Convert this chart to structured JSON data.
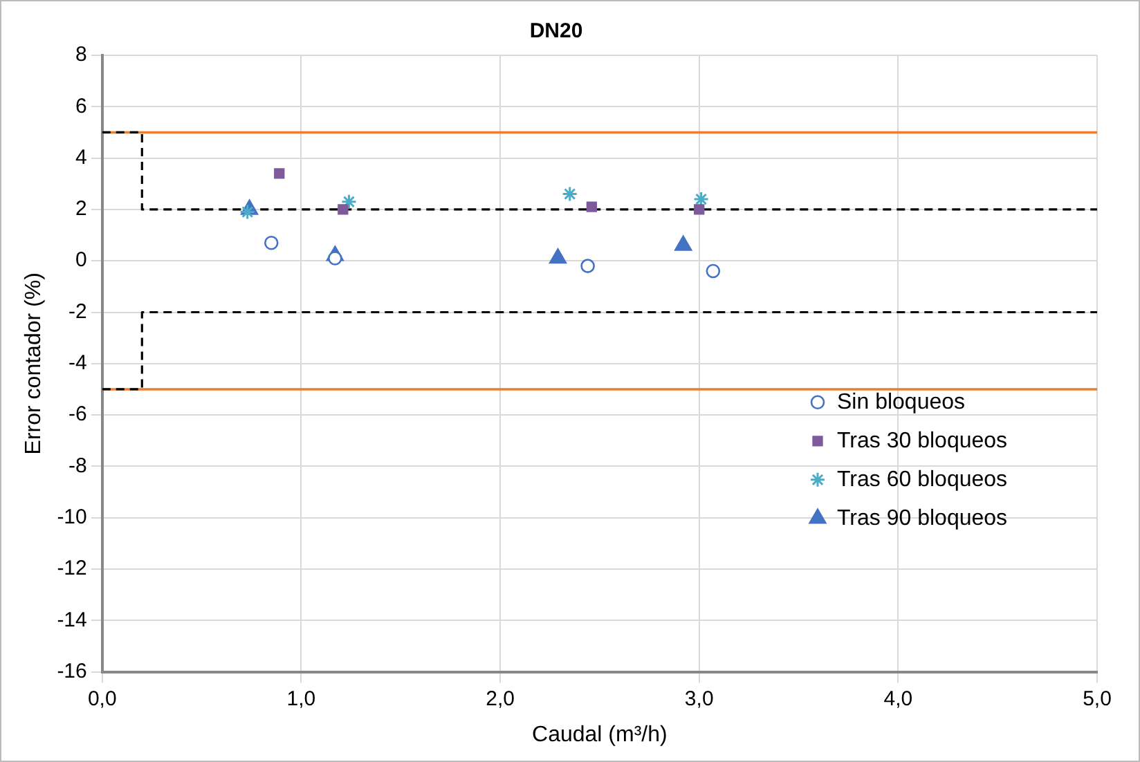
{
  "chart_data": {
    "type": "scatter",
    "title": "DN20",
    "xlabel": "Caudal (m³/h)",
    "ylabel": "Error contador (%)",
    "xlim": [
      0,
      5
    ],
    "xticks": [
      {
        "value": 0,
        "label": "0,0"
      },
      {
        "value": 1,
        "label": "1,0"
      },
      {
        "value": 2,
        "label": "2,0"
      },
      {
        "value": 3,
        "label": "3,0"
      },
      {
        "value": 4,
        "label": "4,0"
      },
      {
        "value": 5,
        "label": "5,0"
      }
    ],
    "ylim": [
      -16,
      8
    ],
    "yticks": [
      -16,
      -14,
      -12,
      -10,
      -8,
      -6,
      -4,
      -2,
      0,
      2,
      4,
      6,
      8
    ],
    "grid": true,
    "legend": "right",
    "ref_lines": [
      {
        "axis": "y",
        "value": 5,
        "color": "#ed7d31"
      },
      {
        "axis": "y",
        "value": -5,
        "color": "#ed7d31"
      }
    ],
    "series": [
      {
        "name": "Sin bloqueos",
        "color": "#4472c4",
        "marker": "circle",
        "x": [
          0.85,
          1.17,
          2.44,
          3.07
        ],
        "values": [
          0.7,
          0.1,
          -0.2,
          -0.4
        ]
      },
      {
        "name": "Tras 30 bloqueos",
        "color": "#7e5a9b",
        "marker": "square",
        "x": [
          0.89,
          1.21,
          2.46,
          3.0
        ],
        "values": [
          3.4,
          2.0,
          2.1,
          2.0
        ]
      },
      {
        "name": "Tras 60 bloqueos",
        "color": "#4bacc6",
        "marker": "cross",
        "x": [
          0.73,
          1.24,
          2.35,
          3.01
        ],
        "values": [
          1.9,
          2.3,
          2.6,
          2.4
        ]
      },
      {
        "name": "Tras 90 bloqueos",
        "color": "#4472c4",
        "marker": "triangle",
        "x": [
          0.74,
          1.17,
          2.29,
          2.92
        ],
        "values": [
          2.0,
          0.2,
          0.1,
          0.6
        ]
      },
      {
        "type": "line",
        "color": "#000000",
        "line_style": "dashed",
        "marker": "none",
        "x": [
          0,
          0.2,
          0.2,
          5
        ],
        "values": [
          5,
          5,
          2,
          2
        ]
      },
      {
        "type": "line",
        "color": "#000000",
        "line_style": "dashed",
        "marker": "none",
        "x": [
          0,
          0.2,
          0.2,
          5
        ],
        "values": [
          -5,
          -5,
          -2,
          -2
        ]
      }
    ]
  }
}
